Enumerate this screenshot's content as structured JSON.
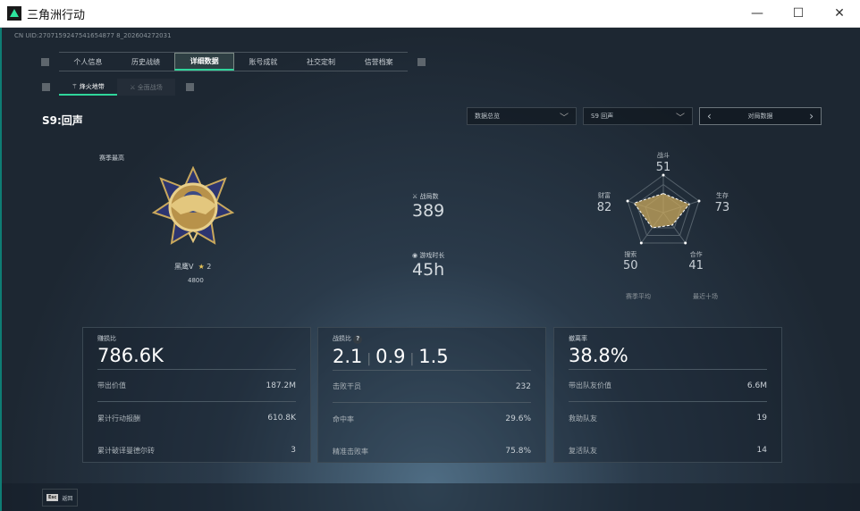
{
  "window": {
    "title": "三角洲行动",
    "minimize": "—",
    "maximize": "☐",
    "close": "✕"
  },
  "uid": "CN UID:2707159247541654877 8_202604272031",
  "tabs": [
    "个人信息",
    "历史战绩",
    "详细数据",
    "账号成就",
    "社交定制",
    "信誉档案"
  ],
  "active_tab": 2,
  "subtabs": [
    "烽火地带",
    "全面战场"
  ],
  "season_title": "S9:回声",
  "dropdowns": {
    "overview": "数据总览",
    "season": "S9 回声",
    "mode": "对局数据"
  },
  "rank": {
    "label": "赛季最高",
    "name": "黑鹰V",
    "stars": "2",
    "score": "4800"
  },
  "matches": {
    "label": "战局数",
    "value": "389"
  },
  "playtime": {
    "label": "游戏时长",
    "value": "45h"
  },
  "radar": {
    "axes": [
      {
        "label": "战斗",
        "value": "51"
      },
      {
        "label": "生存",
        "value": "73"
      },
      {
        "label": "合作",
        "value": "41"
      },
      {
        "label": "搜索",
        "value": "50"
      },
      {
        "label": "财富",
        "value": "82"
      }
    ],
    "legend": [
      "赛季平均",
      "最近十场"
    ],
    "colors": {
      "fill": "#c9a85c",
      "outline": "#ffffff"
    }
  },
  "cards": [
    {
      "title": "赚损比",
      "value": "786.6K",
      "rows": [
        {
          "k": "带出价值",
          "v": "187.2M"
        },
        {
          "k": "累计行动报酬",
          "v": "610.8K"
        },
        {
          "k": "累计破译曼德尔砖",
          "v": "3"
        }
      ]
    },
    {
      "title": "战损比",
      "help": "?",
      "values": [
        "2.1",
        "0.9",
        "1.5"
      ],
      "rows": [
        {
          "k": "击败干员",
          "v": "232"
        },
        {
          "k": "命中率",
          "v": "29.6%"
        },
        {
          "k": "精准击败率",
          "v": "75.8%"
        }
      ]
    },
    {
      "title": "撤离率",
      "value": "38.8%",
      "rows": [
        {
          "k": "带出队友价值",
          "v": "6.6M"
        },
        {
          "k": "救助队友",
          "v": "19"
        },
        {
          "k": "复活队友",
          "v": "14"
        }
      ]
    }
  ],
  "footer": {
    "key": "Esc",
    "label": "返回"
  },
  "accent": "#2fd69b"
}
